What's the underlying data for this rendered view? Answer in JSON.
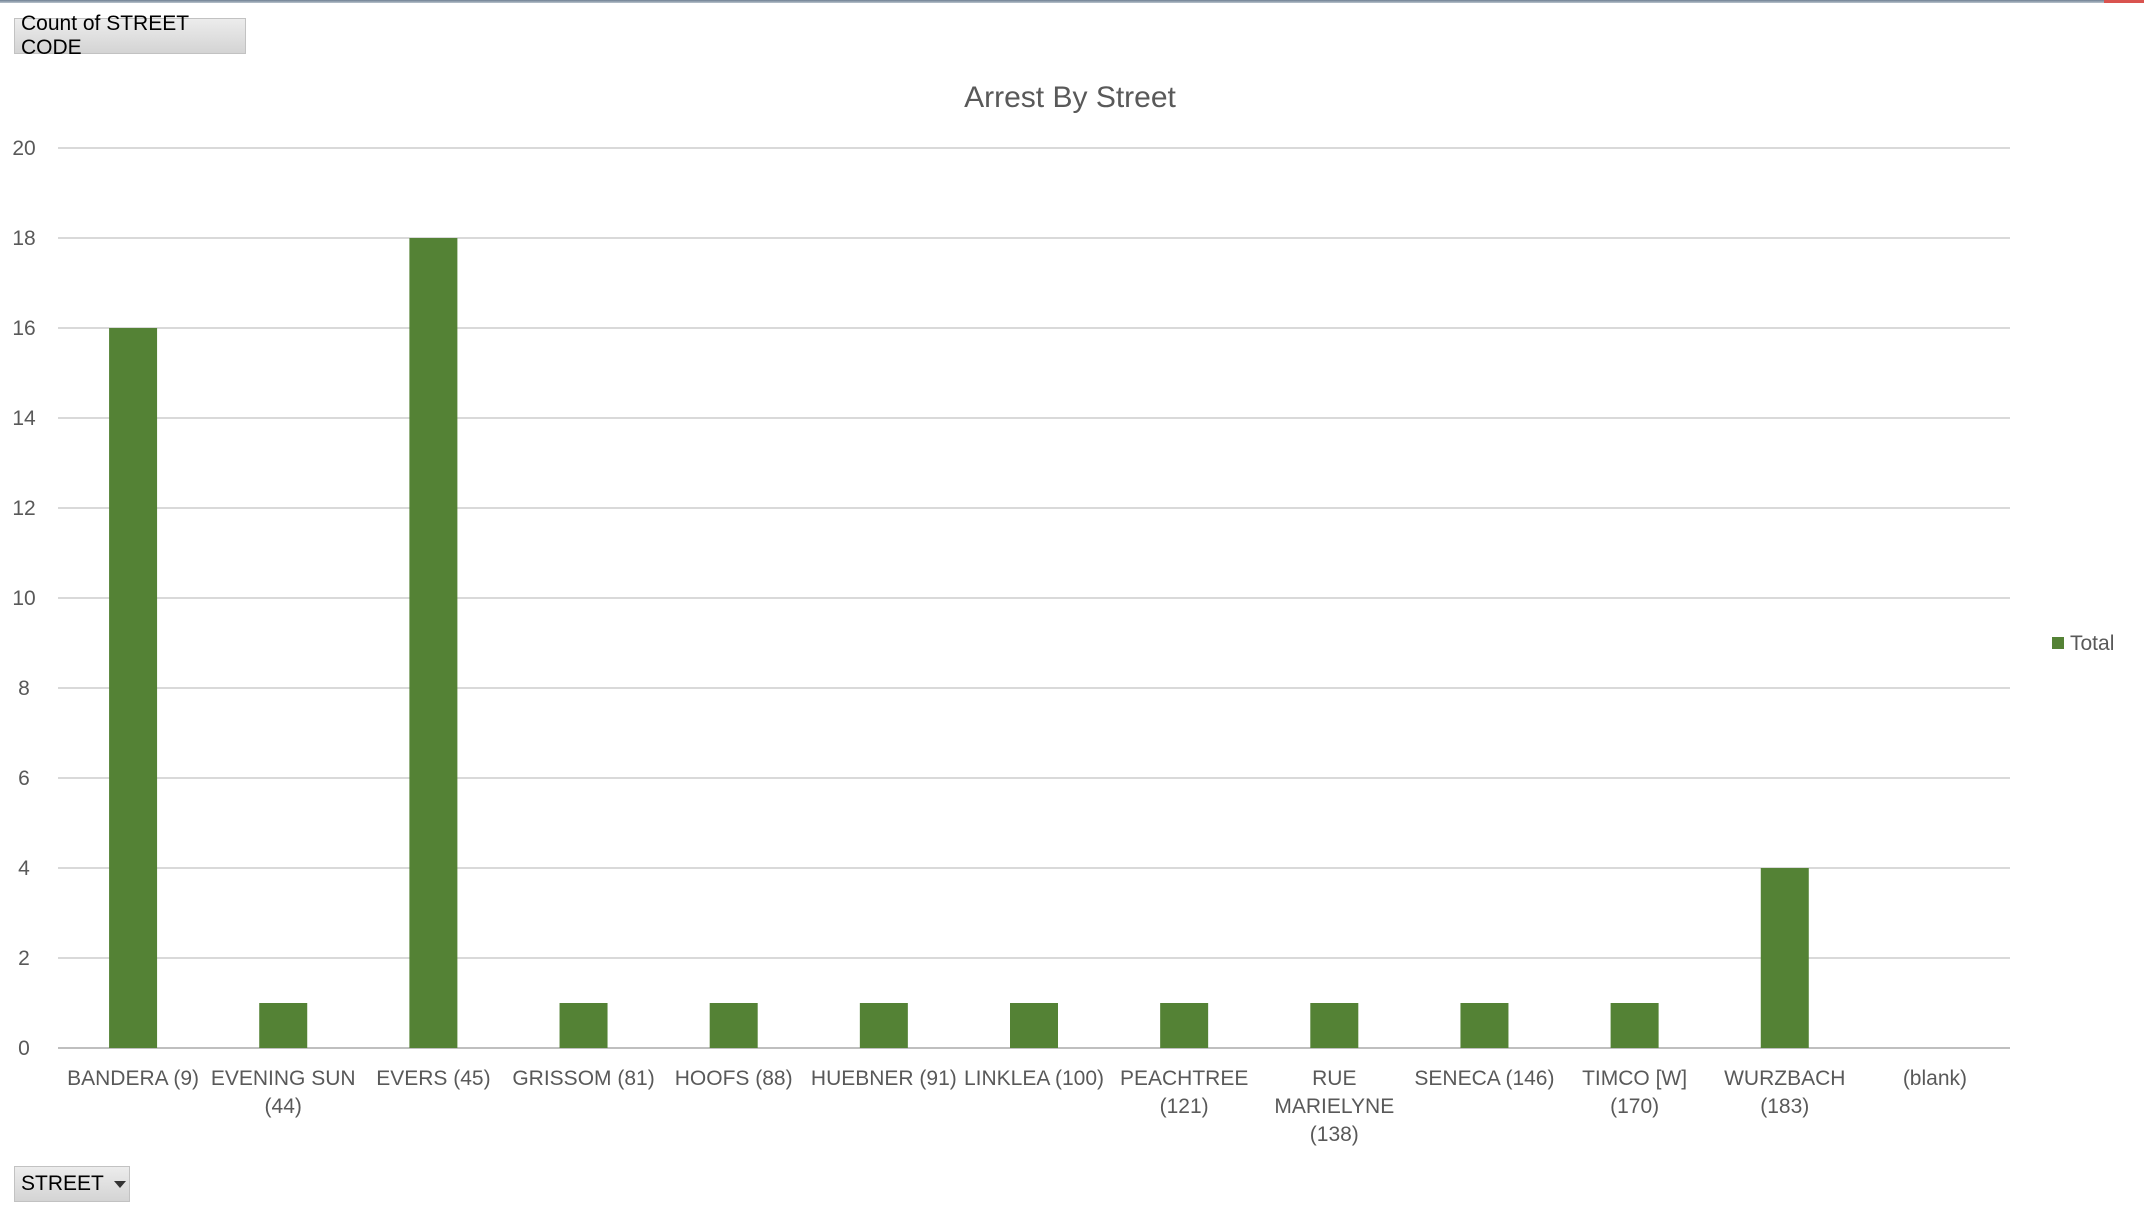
{
  "pivot": {
    "value_field_label": "Count of STREET CODE",
    "axis_field_label": "STREET"
  },
  "chart_data": {
    "type": "bar",
    "title": "Arrest By Street",
    "categories": [
      "BANDERA (9)",
      "EVENING SUN (44)",
      "EVERS (45)",
      "GRISSOM (81)",
      "HOOFS (88)",
      "HUEBNER (91)",
      "LINKLEA (100)",
      "PEACHTREE (121)",
      "RUE MARIELYNE (138)",
      "SENECA (146)",
      "TIMCO [W] (170)",
      "WURZBACH (183)",
      "(blank)"
    ],
    "category_label_lines": [
      [
        "BANDERA (9)"
      ],
      [
        "EVENING SUN",
        "(44)"
      ],
      [
        "EVERS (45)"
      ],
      [
        "GRISSOM (81)"
      ],
      [
        "HOOFS (88)"
      ],
      [
        "HUEBNER (91)"
      ],
      [
        "LINKLEA (100)"
      ],
      [
        "PEACHTREE",
        "(121)"
      ],
      [
        "RUE",
        "MARIELYNE",
        "(138)"
      ],
      [
        "SENECA (146)"
      ],
      [
        "TIMCO [W]",
        "(170)"
      ],
      [
        "WURZBACH",
        "(183)"
      ],
      [
        "(blank)"
      ]
    ],
    "series": [
      {
        "name": "Total",
        "values": [
          16,
          1,
          18,
          1,
          1,
          1,
          1,
          1,
          1,
          1,
          1,
          4,
          null
        ],
        "color": "#548235"
      }
    ],
    "ylim": [
      0,
      20
    ],
    "yticks": [
      0,
      2,
      4,
      6,
      8,
      10,
      12,
      14,
      16,
      18,
      20
    ],
    "grid": true,
    "legend_position": "right"
  }
}
